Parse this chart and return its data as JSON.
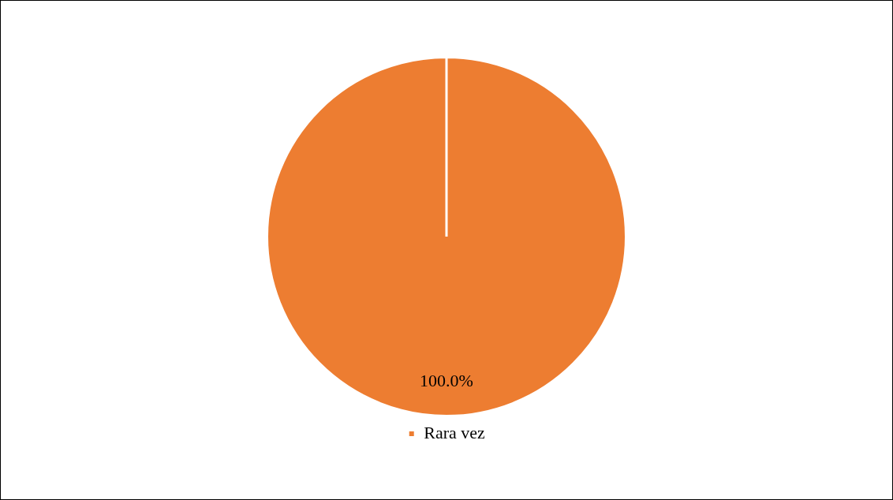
{
  "chart_data": {
    "type": "pie",
    "categories": [
      "Rara vez"
    ],
    "values": [
      100
    ],
    "colors": [
      "#ed7d31"
    ],
    "value_labels": [
      "100.0%"
    ],
    "legend": "bottom"
  }
}
